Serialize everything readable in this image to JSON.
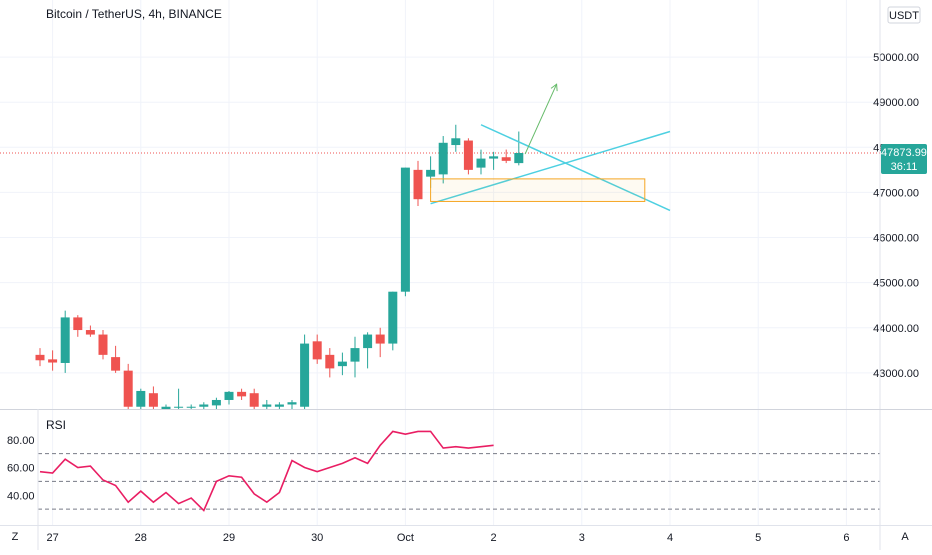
{
  "header": {
    "symbol_title": "Bitcoin / TetherUS, 4h, BINANCE",
    "currency_label": "USDT"
  },
  "price_badge": {
    "price": "47873.99",
    "countdown": "36:11"
  },
  "footer": {
    "z_label": "Z",
    "a_label": "A"
  },
  "colors": {
    "up": "#26a69a",
    "down": "#ef5350",
    "rsi": "#e91e63",
    "trendline": "#4dd0e1",
    "box": "#f5a623",
    "arrow": "#66bb6a",
    "grid": "#f0f3fa"
  },
  "chart_data": [
    {
      "type": "candlestick",
      "ylim": [
        42200,
        50600
      ],
      "y_ticks": [
        43000,
        44000,
        45000,
        46000,
        47000,
        48000,
        49000,
        50000
      ],
      "y_tick_labels": [
        "43000.00",
        "44000.00",
        "45000.00",
        "46000.00",
        "47000.00",
        "48000.00",
        "49000.00",
        "50000.00"
      ],
      "x_ticks": [
        {
          "pos": 1,
          "label": "27"
        },
        {
          "pos": 8,
          "label": "28"
        },
        {
          "pos": 15,
          "label": "29"
        },
        {
          "pos": 22,
          "label": "30"
        },
        {
          "pos": 29,
          "label": "Oct"
        },
        {
          "pos": 36,
          "label": "2"
        },
        {
          "pos": 43,
          "label": "3"
        },
        {
          "pos": 50,
          "label": "4"
        },
        {
          "pos": 57,
          "label": "5"
        },
        {
          "pos": 64,
          "label": "6"
        }
      ],
      "last_price_line": 47874,
      "candles": [
        {
          "o": 43400,
          "h": 43550,
          "l": 43150,
          "c": 43280
        },
        {
          "o": 43300,
          "h": 43500,
          "l": 43050,
          "c": 43230
        },
        {
          "o": 43220,
          "h": 44380,
          "l": 43000,
          "c": 44230
        },
        {
          "o": 44230,
          "h": 44280,
          "l": 43800,
          "c": 43950
        },
        {
          "o": 43950,
          "h": 44050,
          "l": 43800,
          "c": 43850
        },
        {
          "o": 43850,
          "h": 43950,
          "l": 43300,
          "c": 43400
        },
        {
          "o": 43350,
          "h": 43600,
          "l": 43000,
          "c": 43050
        },
        {
          "o": 43050,
          "h": 43200,
          "l": 42200,
          "c": 42250
        },
        {
          "o": 42250,
          "h": 42650,
          "l": 42200,
          "c": 42600
        },
        {
          "o": 42550,
          "h": 42700,
          "l": 42200,
          "c": 42250
        },
        {
          "o": 42200,
          "h": 42300,
          "l": 42200,
          "c": 42250
        },
        {
          "o": 42250,
          "h": 42650,
          "l": 42200,
          "c": 42250
        },
        {
          "o": 42250,
          "h": 42300,
          "l": 42200,
          "c": 42250
        },
        {
          "o": 42250,
          "h": 42350,
          "l": 42200,
          "c": 42300
        },
        {
          "o": 42280,
          "h": 42450,
          "l": 42200,
          "c": 42400
        },
        {
          "o": 42400,
          "h": 42600,
          "l": 42300,
          "c": 42580
        },
        {
          "o": 42580,
          "h": 42650,
          "l": 42400,
          "c": 42480
        },
        {
          "o": 42550,
          "h": 42650,
          "l": 42200,
          "c": 42250
        },
        {
          "o": 42250,
          "h": 42400,
          "l": 42200,
          "c": 42300
        },
        {
          "o": 42250,
          "h": 42350,
          "l": 42200,
          "c": 42300
        },
        {
          "o": 42300,
          "h": 42400,
          "l": 42200,
          "c": 42350
        },
        {
          "o": 42250,
          "h": 43850,
          "l": 42200,
          "c": 43650
        },
        {
          "o": 43700,
          "h": 43850,
          "l": 43200,
          "c": 43300
        },
        {
          "o": 43400,
          "h": 43550,
          "l": 42900,
          "c": 43100
        },
        {
          "o": 43150,
          "h": 43450,
          "l": 42950,
          "c": 43250
        },
        {
          "o": 43250,
          "h": 43800,
          "l": 42900,
          "c": 43550
        },
        {
          "o": 43550,
          "h": 43900,
          "l": 43100,
          "c": 43850
        },
        {
          "o": 43850,
          "h": 44000,
          "l": 43350,
          "c": 43650
        },
        {
          "o": 43650,
          "h": 44800,
          "l": 43500,
          "c": 44800
        },
        {
          "o": 44800,
          "h": 47550,
          "l": 44700,
          "c": 47550
        },
        {
          "o": 47500,
          "h": 47700,
          "l": 46700,
          "c": 46850
        },
        {
          "o": 47350,
          "h": 47800,
          "l": 47100,
          "c": 47500
        },
        {
          "o": 47400,
          "h": 48250,
          "l": 47200,
          "c": 48100
        },
        {
          "o": 48050,
          "h": 48500,
          "l": 47900,
          "c": 48200
        },
        {
          "o": 48150,
          "h": 48200,
          "l": 47400,
          "c": 47500
        },
        {
          "o": 47550,
          "h": 47950,
          "l": 47400,
          "c": 47750
        },
        {
          "o": 47750,
          "h": 47900,
          "l": 47500,
          "c": 47800
        },
        {
          "o": 47780,
          "h": 47950,
          "l": 47650,
          "c": 47700
        },
        {
          "o": 47650,
          "h": 48350,
          "l": 47600,
          "c": 47874
        }
      ]
    },
    {
      "type": "line",
      "name": "RSI",
      "ylim": [
        20,
        100
      ],
      "y_ticks": [
        40,
        60,
        80
      ],
      "y_tick_labels": [
        "40.00",
        "60.00",
        "80.00"
      ],
      "levels": [
        30,
        50,
        70
      ],
      "values": [
        57,
        56,
        66,
        60,
        61,
        51,
        47,
        35,
        43,
        35,
        42,
        34,
        38,
        29,
        50,
        54,
        53,
        41,
        35,
        42,
        65,
        60,
        57,
        60,
        63,
        67,
        63,
        76,
        86,
        84,
        86,
        86,
        74,
        75,
        74,
        75,
        76
      ]
    }
  ],
  "drawings": {
    "trendline_upper": [
      [
        35,
        48500
      ],
      [
        50,
        46600
      ]
    ],
    "trendline_lower": [
      [
        31,
        46750
      ],
      [
        50,
        48350
      ]
    ],
    "support_zone": {
      "x": [
        31,
        48
      ],
      "price": [
        46800,
        47300
      ]
    },
    "forecast_arrow": [
      [
        38.5,
        47850
      ],
      [
        41,
        49400
      ]
    ]
  }
}
